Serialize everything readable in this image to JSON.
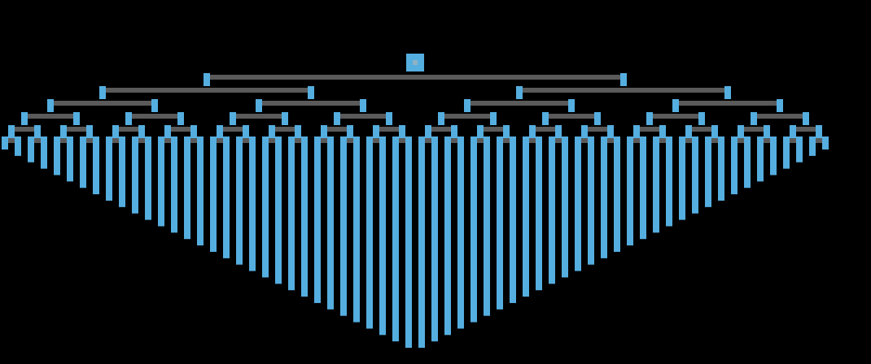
{
  "diagram": {
    "kind": "binary-tree",
    "depth": 6,
    "leaf_count": 64,
    "colors": {
      "background": "#000000",
      "node": "#55aee0",
      "node_inner": "#8db3c4",
      "branch": "#5a5a5a"
    }
  }
}
